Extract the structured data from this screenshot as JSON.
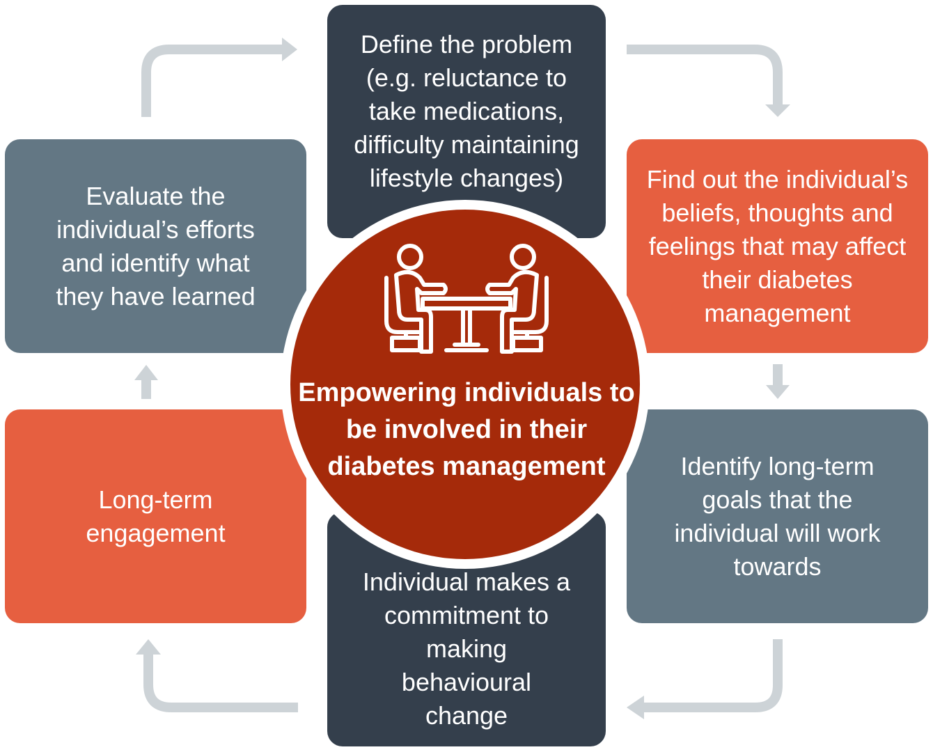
{
  "colors": {
    "dark_navy": "#343f4c",
    "slate": "#637784",
    "orange": "#e65f40",
    "hub_red": "#a52a0a",
    "arrow_gray": "#cdd3d7"
  },
  "center": {
    "icon": "two-people-at-table-icon",
    "title": "Empowering individuals to be involved in their diabetes management"
  },
  "steps": {
    "define": "Define the problem (e.g. reluctance to take medications, difficulty maintaining lifestyle changes)",
    "beliefs": "Find out the individual’s beliefs, thoughts and feelings that may affect their diabetes management",
    "goals": "Identify long-term goals that the individual will work towards",
    "commitment": "Individual makes a commitment to making behavioural change",
    "engagement": "Long-term engagement",
    "evaluate": "Evaluate the individual’s efforts and identify what they have learned"
  }
}
